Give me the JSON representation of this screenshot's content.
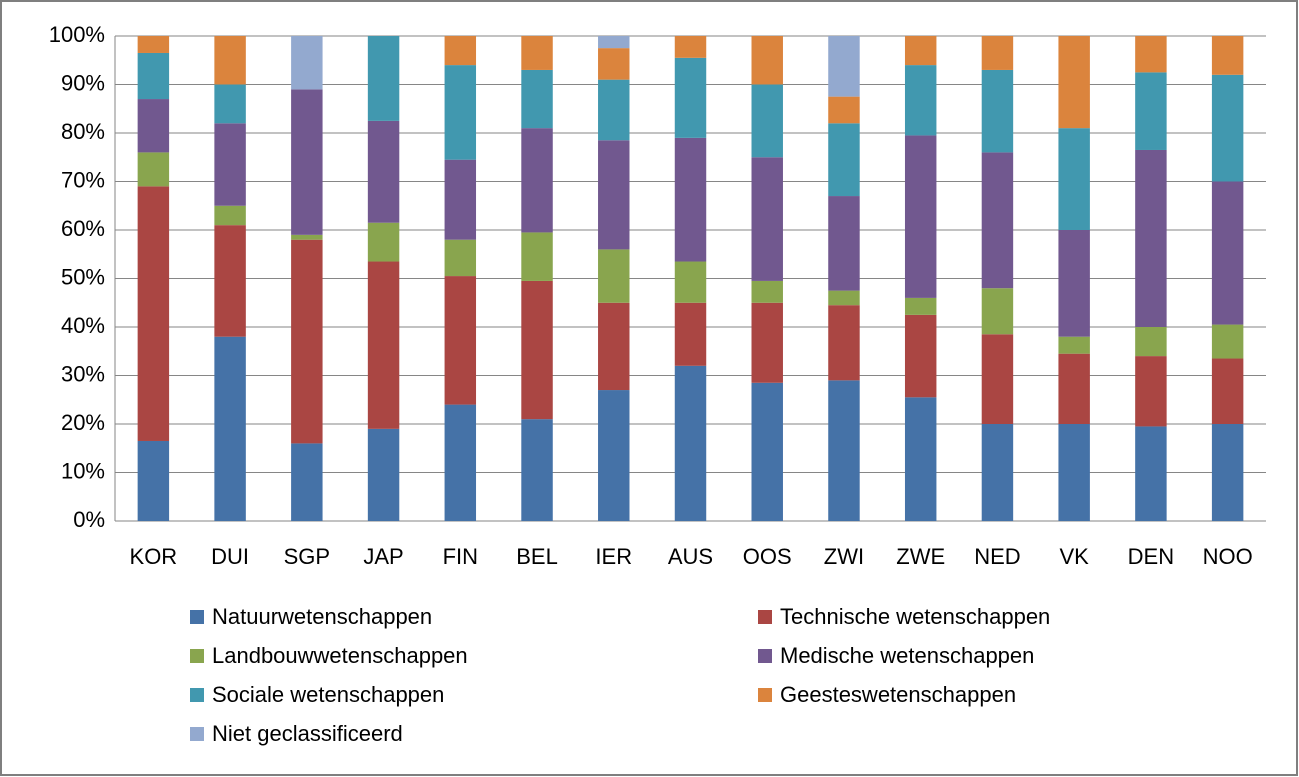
{
  "chart_data": {
    "type": "stacked-bar",
    "categories": [
      "KOR",
      "DUI",
      "SGP",
      "JAP",
      "FIN",
      "BEL",
      "IER",
      "AUS",
      "OOS",
      "ZWI",
      "ZWE",
      "NED",
      "VK",
      "DEN",
      "NOO"
    ],
    "series": [
      {
        "name": "Natuurwetenschappen",
        "color": "#4572a7",
        "values": [
          16.5,
          38,
          16,
          19,
          24,
          21,
          27,
          32,
          28.5,
          29,
          25.5,
          20,
          20,
          19.5,
          20
        ]
      },
      {
        "name": "Technische wetenschappen",
        "color": "#aa4643",
        "values": [
          52.5,
          23,
          42,
          34.5,
          26.5,
          28.5,
          18,
          13,
          16.5,
          15.5,
          17,
          18.5,
          14.5,
          14.5,
          13.5
        ]
      },
      {
        "name": "Landbouwwetenschappen",
        "color": "#89a54e",
        "values": [
          7,
          4,
          1,
          8,
          7.5,
          10,
          11,
          8.5,
          4.5,
          3,
          3.5,
          9.5,
          3.5,
          6,
          7
        ]
      },
      {
        "name": "Medische wetenschappen",
        "color": "#71588f",
        "values": [
          11,
          17,
          30,
          21,
          16.5,
          21.5,
          22.5,
          25.5,
          25.5,
          19.5,
          33.5,
          28,
          22,
          36.5,
          29.5
        ]
      },
      {
        "name": "Sociale wetenschappen",
        "color": "#4198af",
        "values": [
          9.5,
          8,
          0,
          17.5,
          19.5,
          12,
          12.5,
          16.5,
          15,
          15,
          14.5,
          17,
          21,
          16,
          22
        ]
      },
      {
        "name": "Geesteswetenschappen",
        "color": "#db843d",
        "values": [
          3.5,
          10,
          0,
          0,
          6,
          7,
          6.5,
          4.5,
          10,
          5.5,
          6,
          7,
          19,
          7.5,
          8
        ]
      },
      {
        "name": "Niet geclassificeerd",
        "color": "#93a9cf",
        "values": [
          0,
          0,
          11,
          0,
          0,
          0,
          2.5,
          0,
          0,
          12.5,
          0,
          0,
          0,
          0,
          0
        ]
      }
    ],
    "ylim": [
      0,
      100
    ],
    "yticks": [
      {
        "value": 0,
        "label": "0%"
      },
      {
        "value": 10,
        "label": "10%"
      },
      {
        "value": 20,
        "label": "20%"
      },
      {
        "value": 30,
        "label": "30%"
      },
      {
        "value": 40,
        "label": "40%"
      },
      {
        "value": 50,
        "label": "50%"
      },
      {
        "value": 60,
        "label": "60%"
      },
      {
        "value": 70,
        "label": "70%"
      },
      {
        "value": 80,
        "label": "80%"
      },
      {
        "value": 90,
        "label": "90%"
      },
      {
        "value": 100,
        "label": "100%"
      }
    ],
    "grid": true,
    "legend": "bottom"
  }
}
